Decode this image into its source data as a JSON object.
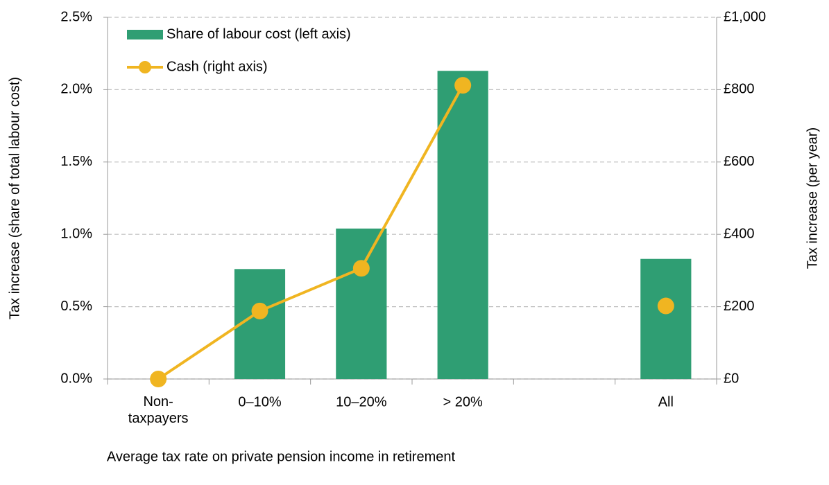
{
  "chart_data": {
    "type": "bar",
    "x_label": "Average tax rate on private pension income in retirement",
    "y_label": "Tax increase (share of total labour cost)",
    "y2_label": "Tax increase (per year)",
    "categories": [
      "Non-\ntaxpayers",
      "0–10%",
      "10–20%",
      "> 20%",
      null,
      "All"
    ],
    "series": [
      {
        "name": "Share of labour cost (left axis)",
        "type": "bar",
        "color": "#2f9e73",
        "values": [
          0,
          0.76,
          1.04,
          2.13,
          null,
          0.83
        ]
      },
      {
        "name": "Cash (right axis)",
        "type": "line",
        "axis": "y2",
        "color": "#f0b521",
        "values": [
          0,
          188,
          306,
          812,
          null,
          202
        ]
      }
    ],
    "ylim": [
      0,
      2.5
    ],
    "yticks": [
      {
        "value": 0,
        "label": "0.0%"
      },
      {
        "value": 0.5,
        "label": "0.5%"
      },
      {
        "value": 1,
        "label": "1.0%"
      },
      {
        "value": 1.5,
        "label": "1.5%"
      },
      {
        "value": 2,
        "label": "2.0%"
      },
      {
        "value": 2.5,
        "label": "2.5%"
      }
    ],
    "y2lim": [
      0,
      1000
    ],
    "y2ticks": [
      {
        "value": 0,
        "label": "£0"
      },
      {
        "value": 200,
        "label": "£200"
      },
      {
        "value": 400,
        "label": "£400"
      },
      {
        "value": 600,
        "label": "£600"
      },
      {
        "value": 800,
        "label": "£800"
      },
      {
        "value": 1000,
        "label": "£1,000"
      }
    ],
    "grid": true,
    "legend": "upper-left"
  }
}
